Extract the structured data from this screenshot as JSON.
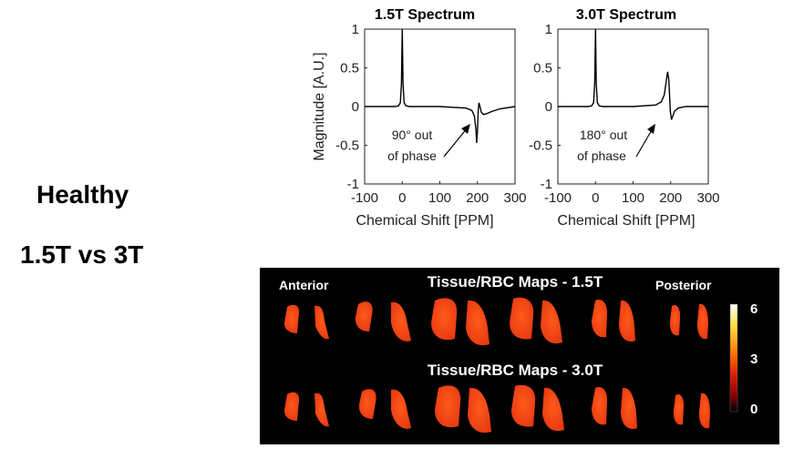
{
  "left_labels": {
    "line1": "Healthy",
    "line2": "1.5T vs 3T"
  },
  "chart_data": [
    {
      "type": "line",
      "title": "1.5T Spectrum",
      "xlabel": "Chemical Shift [PPM]",
      "ylabel": "Magnitude [A.U.]",
      "xlim": [
        -100,
        300
      ],
      "ylim": [
        -1,
        1
      ],
      "xticks": [
        "-100",
        "0",
        "100",
        "200",
        "300"
      ],
      "yticks": [
        "-1",
        "-0.5",
        "0",
        "0.5",
        "1"
      ],
      "annotation": {
        "line1": "90° out",
        "line2": "of phase"
      },
      "series": [
        {
          "x": [
            -100,
            -20,
            -10,
            -5,
            -2,
            0,
            2,
            5,
            10,
            20,
            100,
            170,
            185,
            192,
            196,
            198,
            200,
            202,
            204,
            207,
            210,
            215,
            220,
            240,
            260,
            300
          ],
          "y": [
            0,
            0,
            0.01,
            0.05,
            0.3,
            1.0,
            0.3,
            0.05,
            0.01,
            0,
            0,
            -0.02,
            -0.05,
            -0.12,
            -0.3,
            -0.47,
            -0.32,
            -0.05,
            0.05,
            0.0,
            -0.07,
            -0.1,
            -0.1,
            -0.06,
            -0.03,
            0
          ]
        }
      ]
    },
    {
      "type": "line",
      "title": "3.0T Spectrum",
      "xlabel": "Chemical Shift [PPM]",
      "ylabel": "",
      "xlim": [
        -100,
        300
      ],
      "ylim": [
        -1,
        1
      ],
      "xticks": [
        "-100",
        "0",
        "100",
        "200",
        "300"
      ],
      "yticks": [
        "-1",
        "-0.5",
        "0",
        "0.5",
        "1"
      ],
      "annotation": {
        "line1": "180° out",
        "line2": "of phase"
      },
      "series": [
        {
          "x": [
            -100,
            -20,
            -10,
            -5,
            -2,
            0,
            2,
            5,
            10,
            20,
            100,
            160,
            175,
            183,
            188,
            192,
            195,
            197,
            199,
            202,
            206,
            210,
            220,
            240,
            260,
            300
          ],
          "y": [
            0,
            0,
            0.01,
            0.05,
            0.3,
            1.0,
            0.3,
            0.05,
            0.01,
            0,
            0,
            0.02,
            0.06,
            0.15,
            0.32,
            0.45,
            0.35,
            0.15,
            -0.05,
            -0.17,
            -0.12,
            -0.06,
            -0.02,
            0,
            0,
            0
          ]
        }
      ]
    }
  ],
  "maps_panel": {
    "title_top": "Tissue/RBC Maps - 1.5T",
    "title_bottom": "Tissue/RBC Maps - 3.0T",
    "label_left": "Anterior",
    "label_right": "Posterior",
    "colorbar": {
      "max": "6",
      "mid": "3",
      "min": "0",
      "colors": [
        "#ffffff",
        "#ffe040",
        "#ff7a00",
        "#e02000",
        "#8a0000",
        "#000000"
      ]
    },
    "lung_color": "#e83a12"
  }
}
